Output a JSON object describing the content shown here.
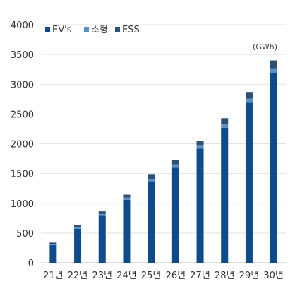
{
  "chart_data": {
    "type": "bar",
    "stacked": true,
    "categories": [
      "21년",
      "22년",
      "23년",
      "24년",
      "25년",
      "26년",
      "27년",
      "28년",
      "29년",
      "30년"
    ],
    "series": [
      {
        "name": "EV's",
        "color": "#0d4c8c",
        "values": [
          300,
          570,
          790,
          1060,
          1370,
          1600,
          1920,
          2270,
          2690,
          3190
        ]
      },
      {
        "name": "소형",
        "color": "#5b8fc7",
        "values": [
          20,
          25,
          30,
          35,
          40,
          55,
          50,
          60,
          70,
          80
        ]
      },
      {
        "name": "ESS",
        "color": "#2f4f73",
        "values": [
          20,
          35,
          45,
          50,
          70,
          75,
          80,
          100,
          110,
          130
        ]
      }
    ],
    "unit": "(GWh)",
    "ylim": [
      0,
      4000
    ],
    "yticks": [
      0,
      500,
      1000,
      1500,
      2000,
      2500,
      3000,
      3500,
      4000
    ],
    "grid": true,
    "legend_position": "top-left"
  }
}
